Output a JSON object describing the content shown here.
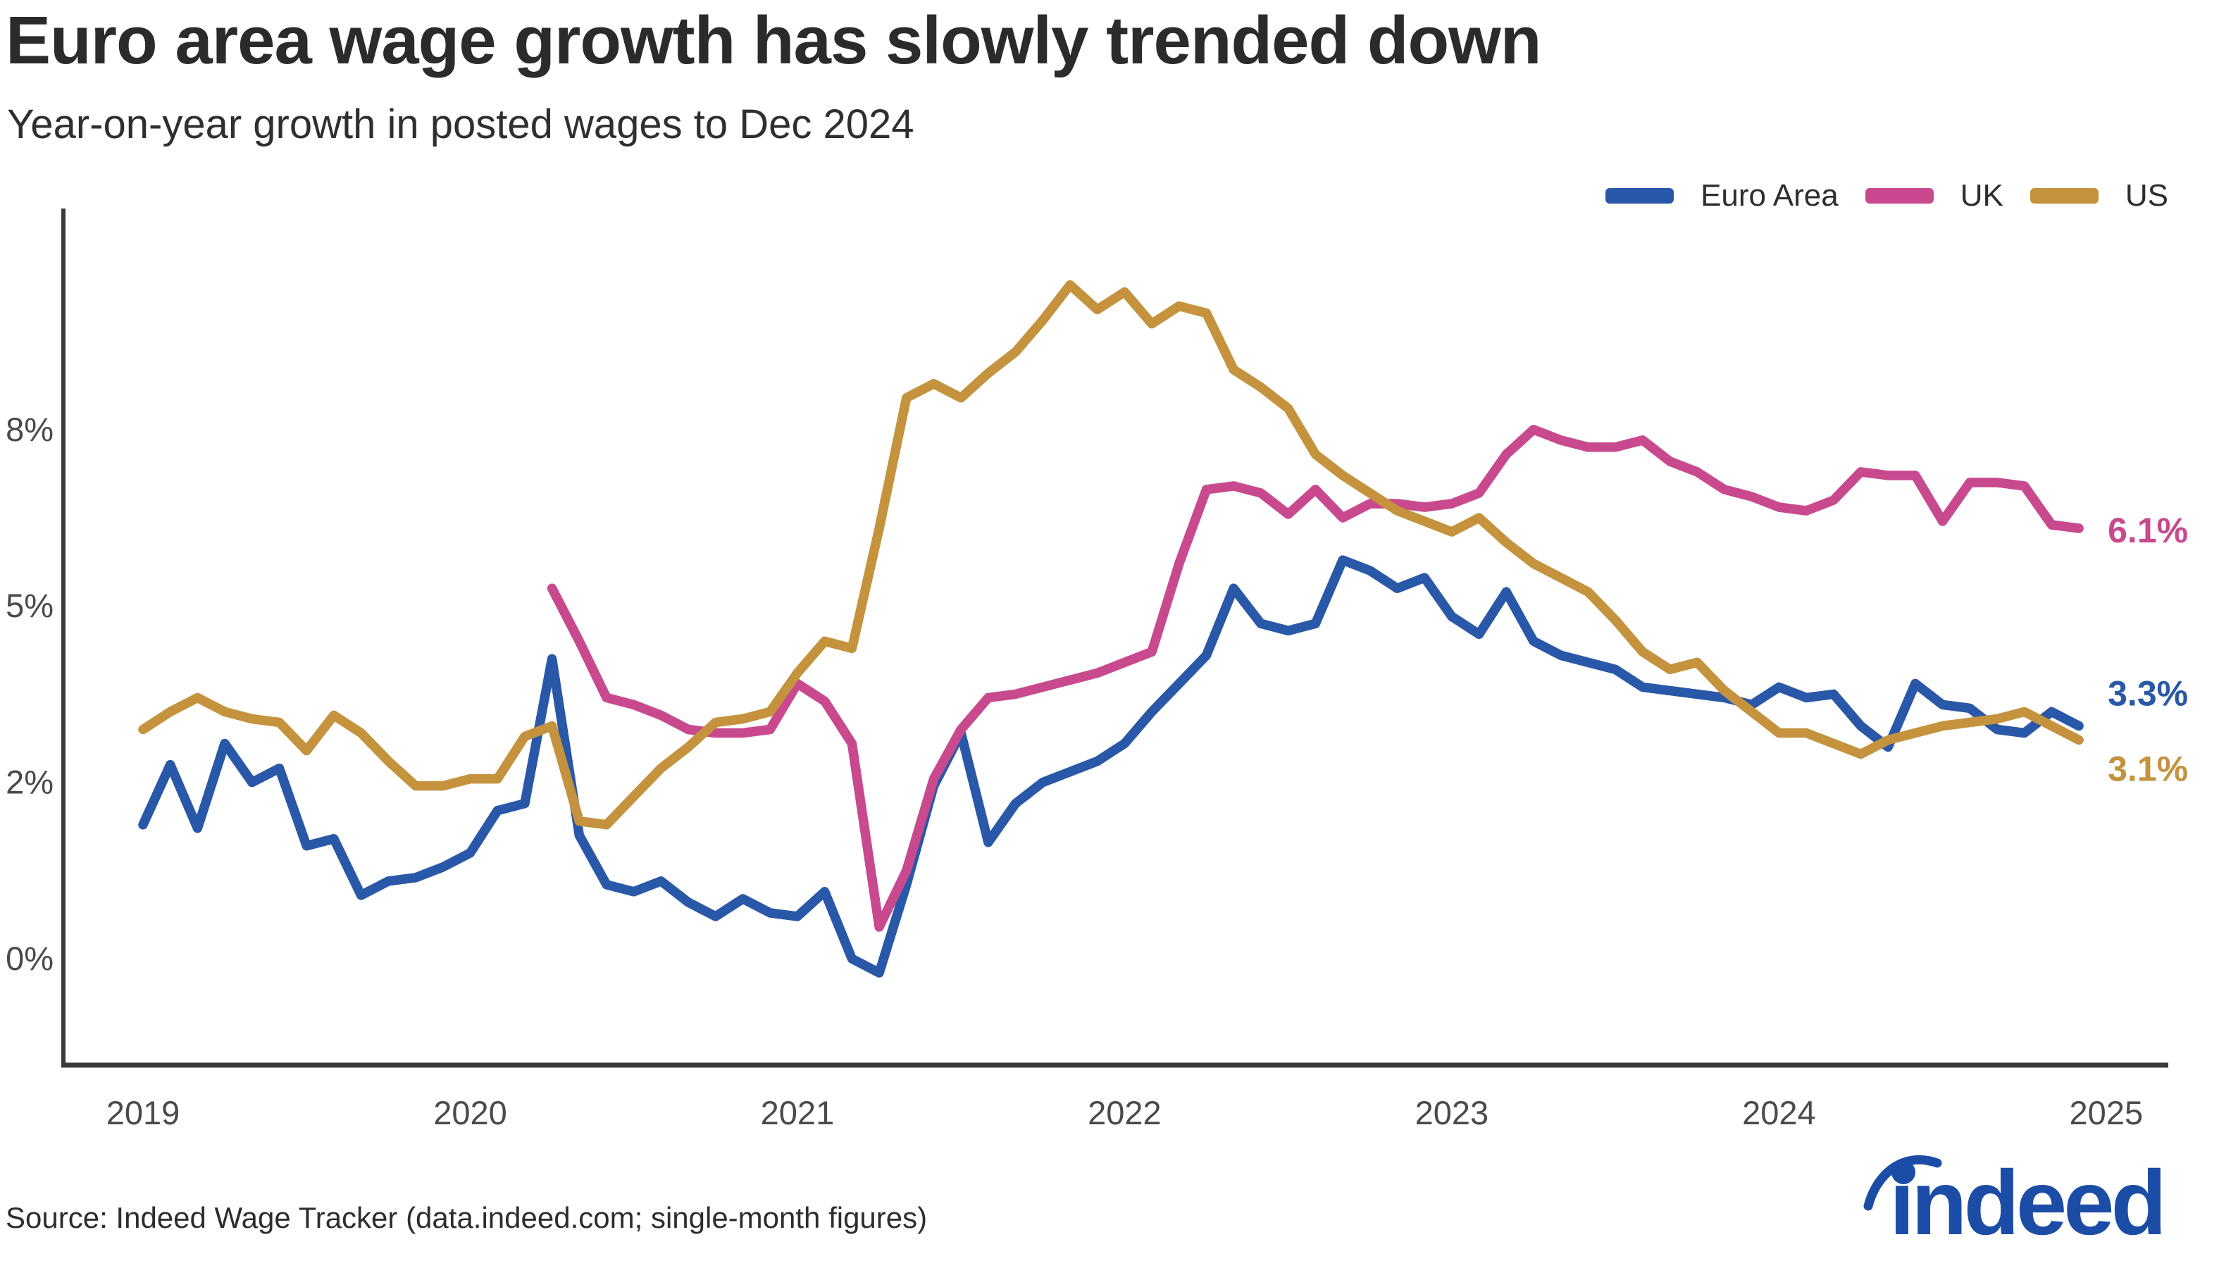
{
  "header": {
    "title": "Euro area wage growth has slowly trended down",
    "subtitle": "Year-on-year growth in posted wages to Dec 2024"
  },
  "legend": [
    {
      "label": "Euro Area",
      "color": "#2a58a8"
    },
    {
      "label": "UK",
      "color": "#c9498e"
    },
    {
      "label": "US",
      "color": "#c5923d"
    }
  ],
  "chart_data": {
    "type": "line",
    "title": "Euro area wage growth has slowly trended down",
    "subtitle": "Year-on-year growth in posted wages to Dec 2024",
    "x_unit": "month",
    "x_range": [
      "2019-01",
      "2024-12"
    ],
    "grid": false,
    "legend_position": "top-right",
    "ylim": [
      -1.5,
      10.6
    ],
    "y_ticks": [
      {
        "label": "8%",
        "value": 7.5
      },
      {
        "label": "5%",
        "value": 5
      },
      {
        "label": "2%",
        "value": 2.5
      },
      {
        "label": "0%",
        "value": 0
      }
    ],
    "x_ticks": [
      {
        "label": "2019",
        "month_index": 0
      },
      {
        "label": "2020",
        "month_index": 12
      },
      {
        "label": "2021",
        "month_index": 24
      },
      {
        "label": "2022",
        "month_index": 36
      },
      {
        "label": "2023",
        "month_index": 48
      },
      {
        "label": "2024",
        "month_index": 60
      },
      {
        "label": "2025",
        "month_index": 72
      }
    ],
    "series": [
      {
        "name": "Euro Area",
        "color": "#2a58a8",
        "start_month": "2019-01",
        "start_month_index": 0,
        "end_label": "3.3%",
        "values": [
          1.9,
          2.75,
          1.85,
          3.05,
          2.5,
          2.7,
          1.6,
          1.7,
          0.9,
          1.1,
          1.15,
          1.3,
          1.5,
          2.1,
          2.2,
          4.25,
          1.75,
          1.05,
          0.95,
          1.1,
          0.8,
          0.6,
          0.85,
          0.65,
          0.6,
          0.95,
          0.0,
          -0.2,
          1.05,
          2.45,
          3.2,
          1.65,
          2.2,
          2.5,
          2.65,
          2.8,
          3.05,
          3.5,
          3.9,
          4.3,
          5.25,
          4.75,
          4.65,
          4.75,
          5.65,
          5.5,
          5.25,
          5.4,
          4.85,
          4.6,
          5.2,
          4.5,
          4.3,
          4.2,
          4.1,
          3.85,
          3.8,
          3.75,
          3.7,
          3.6,
          3.85,
          3.7,
          3.75,
          3.3,
          3.0,
          3.9,
          3.6,
          3.55,
          3.25,
          3.2,
          3.5,
          3.3
        ]
      },
      {
        "name": "UK",
        "color": "#c9498e",
        "start_month": "2020-04",
        "start_month_index": 15,
        "end_label": "6.1%",
        "values": [
          5.25,
          4.5,
          3.7,
          3.6,
          3.45,
          3.25,
          3.2,
          3.2,
          3.25,
          3.9,
          3.65,
          3.05,
          0.45,
          1.25,
          2.55,
          3.25,
          3.7,
          3.75,
          3.85,
          3.95,
          4.05,
          4.2,
          4.35,
          5.6,
          6.65,
          6.7,
          6.6,
          6.3,
          6.65,
          6.25,
          6.45,
          6.45,
          6.4,
          6.45,
          6.6,
          7.15,
          7.5,
          7.35,
          7.25,
          7.25,
          7.35,
          7.05,
          6.9,
          6.65,
          6.55,
          6.4,
          6.35,
          6.5,
          6.9,
          6.85,
          6.85,
          6.2,
          6.75,
          6.75,
          6.7,
          6.15,
          6.1
        ]
      },
      {
        "name": "US",
        "color": "#c5923d",
        "start_month": "2019-01",
        "start_month_index": 0,
        "end_label": "3.1%",
        "values": [
          3.25,
          3.5,
          3.7,
          3.5,
          3.4,
          3.35,
          2.95,
          3.45,
          3.2,
          2.8,
          2.45,
          2.45,
          2.55,
          2.55,
          3.15,
          3.3,
          1.95,
          1.9,
          2.3,
          2.7,
          3.0,
          3.35,
          3.4,
          3.5,
          4.05,
          4.5,
          4.4,
          6.1,
          7.95,
          8.15,
          7.95,
          8.3,
          8.6,
          9.05,
          9.55,
          9.2,
          9.45,
          9.0,
          9.25,
          9.15,
          8.35,
          8.1,
          7.8,
          7.15,
          6.85,
          6.6,
          6.35,
          6.2,
          6.05,
          6.25,
          5.9,
          5.6,
          5.4,
          5.2,
          4.8,
          4.35,
          4.1,
          4.2,
          3.8,
          3.5,
          3.2,
          3.2,
          3.05,
          2.9,
          3.1,
          3.2,
          3.3,
          3.35,
          3.4,
          3.5,
          3.3,
          3.1
        ]
      }
    ]
  },
  "footer": {
    "source": "Source: Indeed Wage Tracker (data.indeed.com; single-month figures)",
    "logo_text": "indeed",
    "logo_color": "#1c4da6"
  }
}
